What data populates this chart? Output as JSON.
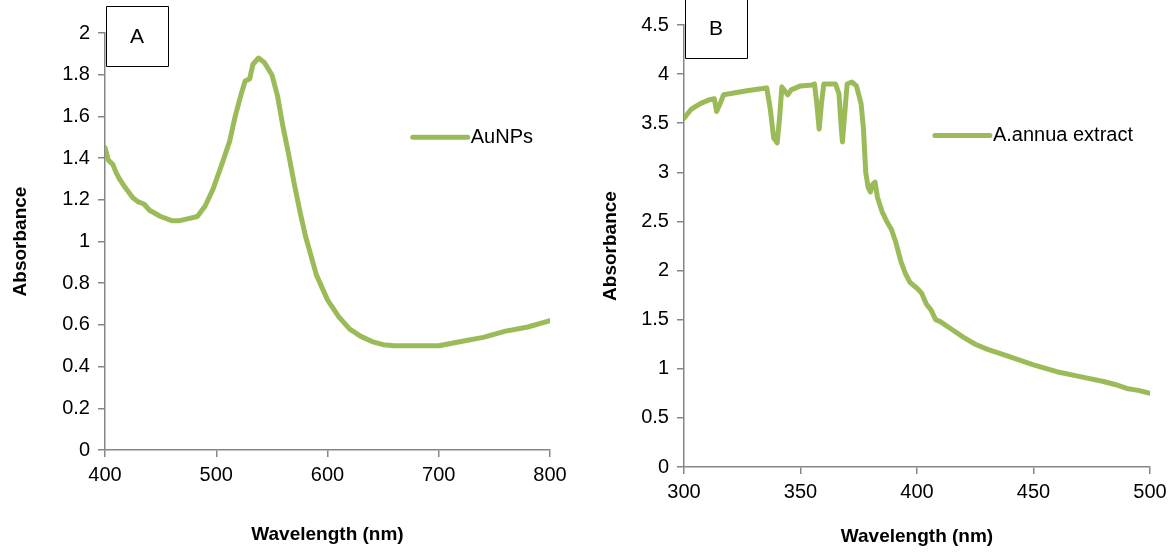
{
  "chart_data": [
    {
      "type": "line",
      "xlabel": "Wavelength (nm)",
      "ylabel": "Absorbance",
      "annotations": [
        "A"
      ],
      "xlim": [
        400,
        800
      ],
      "xticks": [
        400,
        500,
        600,
        700,
        800
      ],
      "ylim": [
        0,
        2
      ],
      "yticks": [
        0,
        0.2,
        0.4,
        0.6,
        0.8,
        1,
        1.2,
        1.4,
        1.6,
        1.8,
        2
      ],
      "grid": false,
      "legend": "top right",
      "marker": "none",
      "line_style": "solid",
      "series": [
        {
          "name": "AuNPs",
          "color": "#9bbb59",
          "x": [
            400,
            403,
            407,
            410,
            413,
            418,
            425,
            430,
            435,
            440,
            450,
            460,
            467,
            475,
            483,
            490,
            497,
            505,
            512,
            517,
            522,
            526,
            530,
            533,
            538,
            543,
            550,
            555,
            560,
            565,
            570,
            575,
            580,
            590,
            600,
            610,
            620,
            630,
            640,
            650,
            660,
            680,
            700,
            720,
            740,
            760,
            780,
            800
          ],
          "values": [
            1.45,
            1.39,
            1.37,
            1.33,
            1.3,
            1.26,
            1.21,
            1.19,
            1.18,
            1.15,
            1.12,
            1.1,
            1.1,
            1.11,
            1.12,
            1.17,
            1.25,
            1.37,
            1.48,
            1.6,
            1.7,
            1.77,
            1.78,
            1.85,
            1.88,
            1.86,
            1.8,
            1.7,
            1.55,
            1.42,
            1.28,
            1.15,
            1.03,
            0.84,
            0.72,
            0.64,
            0.58,
            0.545,
            0.52,
            0.505,
            0.5,
            0.5,
            0.5,
            0.52,
            0.54,
            0.57,
            0.59,
            0.62
          ]
        }
      ]
    },
    {
      "type": "line",
      "xlabel": "Wavelength (nm)",
      "ylabel": "Absorbance",
      "annotations": [
        "B"
      ],
      "xlim": [
        300,
        500
      ],
      "xticks": [
        300,
        350,
        400,
        450,
        500
      ],
      "ylim": [
        0,
        4.5
      ],
      "yticks": [
        0,
        0.5,
        1,
        1.5,
        2,
        2.5,
        3,
        3.5,
        4,
        4.5
      ],
      "grid": false,
      "legend": "top right",
      "marker": "none",
      "line_style": "solid",
      "series": [
        {
          "name": "A.annua extract",
          "color": "#9bbb59",
          "x": [
            300,
            303,
            307,
            311,
            313,
            314,
            315.5,
            317,
            322,
            327,
            333,
            335.5,
            337,
            338.5,
            340,
            341,
            342,
            343.5,
            344.5,
            346,
            350,
            355,
            356,
            357,
            358,
            359,
            360,
            363,
            365,
            366.5,
            367.5,
            368,
            369,
            370,
            372,
            374,
            376,
            377,
            378,
            379,
            380,
            381,
            382,
            383,
            385,
            387,
            389,
            391,
            393,
            395,
            397,
            400,
            402,
            404,
            406,
            408,
            410,
            415,
            420,
            425,
            430,
            440,
            450,
            460,
            470,
            480,
            485,
            490,
            495,
            500
          ],
          "values": [
            3.55,
            3.64,
            3.7,
            3.74,
            3.75,
            3.62,
            3.7,
            3.79,
            3.81,
            3.83,
            3.85,
            3.86,
            3.65,
            3.35,
            3.3,
            3.55,
            3.87,
            3.82,
            3.79,
            3.84,
            3.88,
            3.89,
            3.9,
            3.7,
            3.44,
            3.7,
            3.9,
            3.9,
            3.9,
            3.8,
            3.45,
            3.31,
            3.6,
            3.9,
            3.92,
            3.88,
            3.7,
            3.45,
            3,
            2.85,
            2.8,
            2.88,
            2.9,
            2.75,
            2.6,
            2.5,
            2.42,
            2.28,
            2.1,
            1.97,
            1.88,
            1.82,
            1.77,
            1.66,
            1.6,
            1.5,
            1.48,
            1.4,
            1.32,
            1.25,
            1.2,
            1.12,
            1.04,
            0.97,
            0.92,
            0.87,
            0.84,
            0.8,
            0.78,
            0.75
          ]
        }
      ]
    }
  ]
}
